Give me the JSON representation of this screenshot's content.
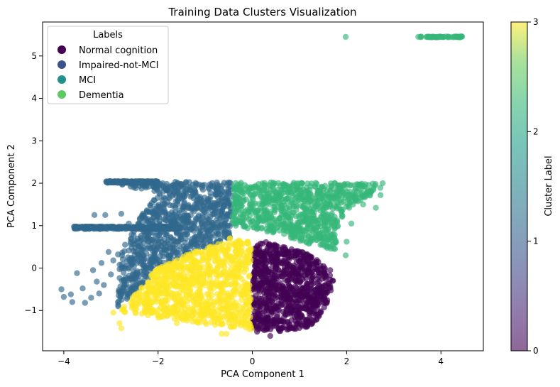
{
  "chart_data": {
    "type": "scatter",
    "title": "Training Data Clusters Visualization",
    "xlabel": "PCA Component 1",
    "ylabel": "PCA Component 2",
    "xlim": [
      -4.45,
      4.9
    ],
    "ylim": [
      -1.95,
      5.8
    ],
    "x_ticks": [
      -4,
      -2,
      0,
      2,
      4
    ],
    "x_tick_labels": [
      "−4",
      "−2",
      "0",
      "2",
      "4"
    ],
    "y_ticks": [
      -1,
      0,
      1,
      2,
      3,
      4,
      5
    ],
    "y_tick_labels": [
      "−1",
      "0",
      "1",
      "2",
      "3",
      "4",
      "5"
    ],
    "grid": false,
    "legend": {
      "title": "Labels",
      "placement": "top-left",
      "entries": [
        {
          "label": "Normal cognition",
          "color": "#440154"
        },
        {
          "label": "Impaired-not-MCI",
          "color": "#3b528b"
        },
        {
          "label": "MCI",
          "color": "#21918c"
        },
        {
          "label": "Dementia",
          "color": "#5ec962"
        }
      ]
    },
    "colorbar": {
      "label": "Cluster Label",
      "range": [
        0,
        3
      ],
      "ticks": [
        0,
        1,
        2,
        3
      ],
      "tick_labels": [
        "0",
        "1",
        "2",
        "3"
      ],
      "colormap": "viridis",
      "alpha": 0.6
    },
    "series": [
      {
        "cluster": 0,
        "color": "#440154",
        "regions": [
          {
            "kind": "polygon",
            "density": 900,
            "points": [
              [
                0.0,
                0.55
              ],
              [
                0.3,
                0.62
              ],
              [
                0.7,
                0.5
              ],
              [
                1.1,
                0.38
              ],
              [
                1.5,
                0.1
              ],
              [
                1.72,
                -0.3
              ],
              [
                1.6,
                -0.8
              ],
              [
                1.3,
                -1.35
              ],
              [
                0.7,
                -1.5
              ],
              [
                0.0,
                -1.45
              ]
            ]
          }
        ],
        "points": [
          [
            0.38,
            -1.6
          ],
          [
            1.35,
            -0.9
          ],
          [
            1.55,
            -0.62
          ],
          [
            1.7,
            -0.3
          ],
          [
            1.45,
            -1.05
          ],
          [
            0.55,
            -1.42
          ],
          [
            1.65,
            -0.05
          ],
          [
            0.1,
            -1.5
          ]
        ]
      },
      {
        "cluster": 1,
        "color": "#31688e",
        "regions": [
          {
            "kind": "polygon",
            "density": 900,
            "points": [
              [
                -3.0,
                2.03
              ],
              [
                -0.4,
                2.03
              ],
              [
                -0.4,
                2.05
              ],
              [
                -0.43,
                1.0
              ],
              [
                -0.47,
                0.72
              ],
              [
                -1.2,
                0.4
              ],
              [
                -2.05,
                0.0
              ],
              [
                -2.45,
                -0.6
              ],
              [
                -2.9,
                -0.95
              ],
              [
                -2.8,
                0.3
              ],
              [
                -2.4,
                1.2
              ],
              [
                -2.0,
                1.75
              ]
            ]
          },
          {
            "kind": "band",
            "density": 260,
            "x_range": [
              -3.8,
              -1.5
            ],
            "y": 0.95,
            "spread": 0.03
          },
          {
            "kind": "band",
            "density": 200,
            "x_range": [
              -3.1,
              -2.0
            ],
            "y": 2.03,
            "spread": 0.02
          }
        ],
        "points": [
          [
            -4.05,
            -0.5
          ],
          [
            -4.0,
            -0.68
          ],
          [
            -3.85,
            -0.62
          ],
          [
            -3.82,
            -0.8
          ],
          [
            -3.72,
            -0.12
          ],
          [
            -3.6,
            -0.48
          ],
          [
            -3.55,
            -0.82
          ],
          [
            -3.42,
            -0.7
          ],
          [
            -3.38,
            -0.05
          ],
          [
            -3.3,
            -0.32
          ],
          [
            -3.25,
            -0.6
          ],
          [
            -3.2,
            0.12
          ],
          [
            -3.35,
            1.25
          ],
          [
            -3.12,
            1.25
          ],
          [
            -3.05,
            0.38
          ],
          [
            -2.95,
            0.18
          ],
          [
            -2.78,
            1.28
          ],
          [
            -2.62,
            1.05
          ],
          [
            -3.15,
            -0.4
          ],
          [
            -3.0,
            -0.15
          ],
          [
            -2.7,
            0.55
          ],
          [
            -2.85,
            0.32
          ]
        ]
      },
      {
        "cluster": 2,
        "color": "#35b779",
        "regions": [
          {
            "kind": "polygon",
            "density": 850,
            "points": [
              [
                -0.4,
                2.03
              ],
              [
                2.85,
                2.0
              ],
              [
                2.6,
                1.75
              ],
              [
                2.2,
                1.55
              ],
              [
                1.95,
                1.3
              ],
              [
                1.85,
                1.0
              ],
              [
                1.75,
                0.42
              ],
              [
                1.1,
                0.6
              ],
              [
                0.55,
                0.8
              ],
              [
                0.0,
                0.92
              ],
              [
                -0.43,
                1.0
              ]
            ]
          },
          {
            "kind": "band",
            "density": 60,
            "x_range": [
              3.55,
              4.45
            ],
            "y": 5.45,
            "spread": 0.01
          }
        ],
        "points": [
          [
            1.98,
            5.45
          ],
          [
            3.52,
            5.45
          ],
          [
            2.72,
            1.72
          ],
          [
            2.62,
            1.42
          ],
          [
            1.98,
            0.3
          ],
          [
            2.0,
            0.62
          ],
          [
            2.1,
            1.05
          ],
          [
            2.35,
            1.5
          ]
        ]
      },
      {
        "cluster": 3,
        "color": "#fde725",
        "regions": [
          {
            "kind": "polygon",
            "density": 900,
            "points": [
              [
                -0.47,
                0.72
              ],
              [
                -0.05,
                0.62
              ],
              [
                0.0,
                0.3
              ],
              [
                -0.05,
                -0.5
              ],
              [
                0.0,
                -1.45
              ],
              [
                -0.8,
                -1.35
              ],
              [
                -1.8,
                -1.2
              ],
              [
                -2.75,
                -1.05
              ],
              [
                -2.8,
                -0.9
              ],
              [
                -2.45,
                -0.6
              ],
              [
                -2.05,
                0.0
              ],
              [
                -1.2,
                0.4
              ]
            ]
          }
        ],
        "points": [
          [
            -2.82,
            -1.3
          ],
          [
            -2.78,
            -1.42
          ],
          [
            -0.65,
            -1.55
          ],
          [
            -0.55,
            -1.55
          ],
          [
            -2.95,
            -1.05
          ],
          [
            -1.6,
            -1.3
          ],
          [
            -1.0,
            -1.28
          ]
        ]
      }
    ]
  }
}
